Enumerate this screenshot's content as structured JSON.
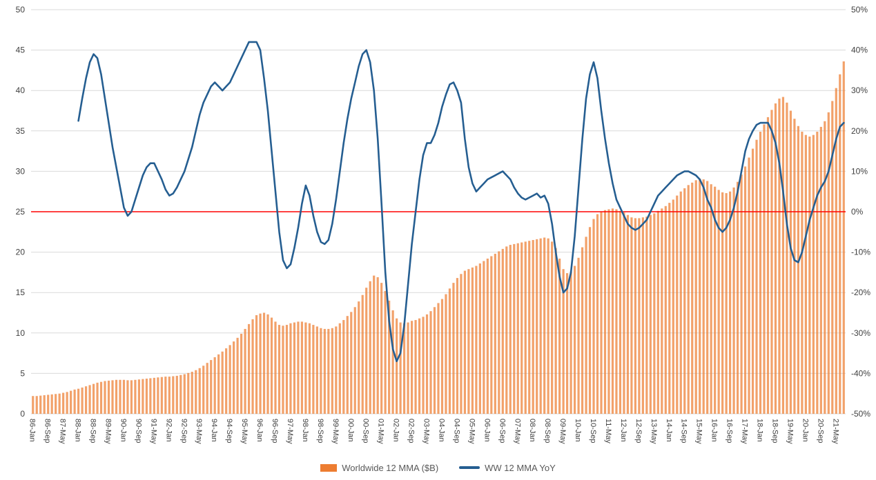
{
  "legend": {
    "bar_label": "Worldwide 12 MMA ($B)",
    "line_label": "WW 12 MMA YoY"
  },
  "chart_data": {
    "type": "bar",
    "subtype": "combo-bar-line",
    "title": "",
    "grid": true,
    "legend_position": "bottom",
    "x_start": "86-Jan",
    "x_month_step": 2,
    "x_tick_every": 4,
    "x_ticks": [
      "86-Jan",
      "86-Sep",
      "87-May",
      "88-Jan",
      "88-Sep",
      "89-May",
      "90-Jan",
      "90-Sep",
      "91-May",
      "92-Jan",
      "92-Sep",
      "93-May",
      "94-Jan",
      "94-Sep",
      "95-May",
      "96-Jan",
      "96-Sep",
      "97-May",
      "98-Jan",
      "98-Sep",
      "99-May",
      "00-Jan",
      "00-Sep",
      "01-May",
      "02-Jan",
      "02-Sep",
      "03-May",
      "04-Jan",
      "04-Sep",
      "05-May",
      "06-Jan",
      "06-Sep",
      "07-May",
      "08-Jan",
      "08-Sep",
      "09-May",
      "10-Jan",
      "10-Sep",
      "11-May",
      "12-Jan",
      "12-Sep",
      "13-May",
      "14-Jan",
      "14-Sep",
      "15-May",
      "16-Jan",
      "16-Sep",
      "17-May",
      "18-Jan",
      "18-Sep",
      "19-May",
      "20-Jan",
      "20-Sep",
      "21-May"
    ],
    "left_axis": {
      "min": 0,
      "max": 50,
      "step": 5,
      "ticks": [
        "0",
        "5",
        "10",
        "15",
        "20",
        "25",
        "30",
        "35",
        "40",
        "45",
        "50"
      ]
    },
    "right_axis": {
      "min": -50,
      "max": 50,
      "step": 10,
      "ticks": [
        "-50%",
        "-40%",
        "-30%",
        "-20%",
        "-10%",
        "0%",
        "10%",
        "20%",
        "30%",
        "40%",
        "50%"
      ]
    },
    "baseline": {
      "left_value": 25,
      "right_label": "0%",
      "color": "#FF0000"
    },
    "grid_color": "#D9D9D9",
    "series": [
      {
        "name": "Worldwide 12 MMA ($B)",
        "type": "bar",
        "axis": "left",
        "color": "#ED7D31",
        "start_index": 0,
        "values": [
          2.2,
          2.2,
          2.25,
          2.3,
          2.35,
          2.4,
          2.45,
          2.5,
          2.6,
          2.7,
          2.85,
          3.0,
          3.1,
          3.25,
          3.4,
          3.55,
          3.7,
          3.85,
          3.95,
          4.05,
          4.1,
          4.15,
          4.2,
          4.2,
          4.2,
          4.15,
          4.15,
          4.2,
          4.25,
          4.3,
          4.35,
          4.4,
          4.45,
          4.5,
          4.55,
          4.6,
          4.6,
          4.65,
          4.7,
          4.8,
          4.9,
          5.05,
          5.2,
          5.4,
          5.65,
          5.95,
          6.3,
          6.65,
          7.0,
          7.35,
          7.7,
          8.1,
          8.5,
          8.95,
          9.4,
          9.9,
          10.5,
          11.1,
          11.7,
          12.2,
          12.4,
          12.5,
          12.3,
          11.9,
          11.4,
          11.0,
          10.9,
          11.0,
          11.2,
          11.3,
          11.4,
          11.4,
          11.3,
          11.2,
          11.0,
          10.8,
          10.6,
          10.5,
          10.5,
          10.6,
          10.8,
          11.2,
          11.6,
          12.1,
          12.6,
          13.2,
          13.9,
          14.7,
          15.6,
          16.4,
          17.1,
          16.9,
          16.2,
          15.2,
          14.0,
          12.8,
          11.8,
          11.3,
          11.2,
          11.3,
          11.5,
          11.6,
          11.8,
          12.0,
          12.3,
          12.7,
          13.2,
          13.7,
          14.2,
          14.8,
          15.5,
          16.2,
          16.8,
          17.3,
          17.7,
          17.9,
          18.1,
          18.3,
          18.6,
          18.9,
          19.2,
          19.5,
          19.8,
          20.1,
          20.4,
          20.7,
          20.9,
          21.0,
          21.1,
          21.2,
          21.3,
          21.4,
          21.5,
          21.6,
          21.7,
          21.8,
          21.7,
          21.3,
          20.5,
          19.2,
          17.9,
          17.4,
          17.6,
          18.3,
          19.3,
          20.6,
          21.9,
          23.1,
          24.1,
          24.7,
          25.0,
          25.2,
          25.3,
          25.4,
          25.3,
          25.1,
          24.9,
          24.6,
          24.3,
          24.2,
          24.2,
          24.3,
          24.4,
          24.6,
          24.8,
          25.1,
          25.4,
          25.7,
          26.1,
          26.5,
          27.0,
          27.5,
          27.9,
          28.3,
          28.6,
          28.9,
          29.1,
          29.0,
          28.8,
          28.4,
          28.1,
          27.7,
          27.4,
          27.3,
          27.5,
          28.0,
          28.7,
          29.6,
          30.6,
          31.7,
          32.8,
          33.9,
          34.9,
          35.8,
          36.7,
          37.6,
          38.4,
          39.0,
          39.2,
          38.5,
          37.5,
          36.5,
          35.6,
          34.9,
          34.5,
          34.3,
          34.5,
          34.9,
          35.5,
          36.2,
          37.3,
          38.7,
          40.3,
          42.0,
          43.6
        ]
      },
      {
        "name": "WW 12 MMA YoY",
        "type": "line",
        "axis": "right",
        "color": "#255E91",
        "start_index": 12,
        "values": [
          22.5,
          28,
          33,
          37,
          39,
          38,
          34,
          28,
          22,
          16,
          11,
          6,
          1,
          -1,
          0,
          3,
          6,
          9,
          11,
          12,
          12,
          10,
          8,
          5.5,
          4,
          4.5,
          6,
          8,
          10,
          13,
          16,
          20,
          24,
          27,
          29,
          31,
          32,
          31,
          30,
          31,
          32,
          34,
          36,
          38,
          40,
          42,
          42,
          42,
          40,
          33,
          25,
          15,
          5,
          -5,
          -12,
          -14,
          -13,
          -9,
          -4,
          2,
          6.5,
          4,
          -1,
          -5,
          -7.5,
          -8,
          -7,
          -3,
          3,
          10,
          17,
          23,
          28,
          32,
          36,
          39,
          40,
          37,
          30,
          18,
          2,
          -15,
          -27,
          -34,
          -37,
          -35,
          -28,
          -18,
          -8,
          0,
          8,
          14,
          17,
          17,
          19,
          22,
          26,
          29,
          31.5,
          32,
          30,
          27,
          18,
          11,
          7,
          5,
          6,
          7,
          8,
          8.5,
          9,
          9.5,
          10,
          9,
          8,
          6,
          4.5,
          3.5,
          3,
          3.5,
          4,
          4.5,
          3.5,
          4,
          2,
          -3,
          -10,
          -16,
          -20,
          -19,
          -15,
          -6,
          6,
          18,
          28,
          34,
          37,
          33,
          25,
          18,
          12,
          7,
          3,
          1,
          -1,
          -3,
          -4,
          -4.5,
          -4,
          -3,
          -2,
          0,
          2,
          4,
          5,
          6,
          7,
          8,
          9,
          9.5,
          10,
          10,
          9.5,
          9,
          8,
          6,
          3,
          1,
          -2,
          -4,
          -5,
          -4,
          -2,
          1,
          5,
          10,
          15,
          18,
          20,
          21.5,
          22,
          22,
          22,
          20,
          17,
          12,
          5,
          -3,
          -9,
          -12,
          -12.5,
          -10,
          -6,
          -2,
          1,
          4,
          6,
          7.5,
          10,
          14,
          18,
          21,
          22
        ]
      }
    ]
  }
}
